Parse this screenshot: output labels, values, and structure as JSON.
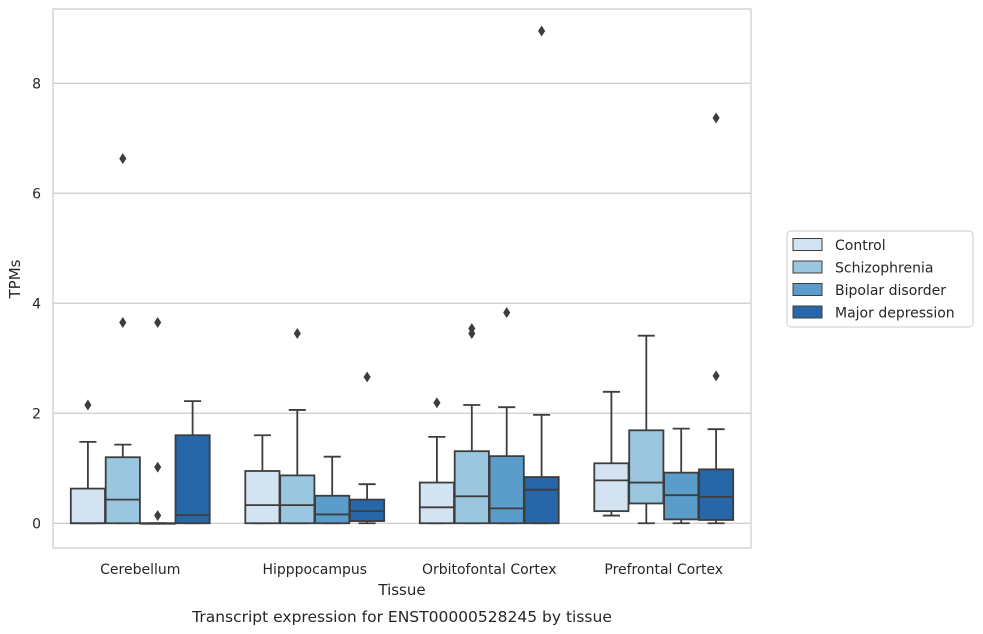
{
  "chart_data": {
    "type": "box",
    "title": "",
    "caption": "Transcript expression for ENST00000528245 by tissue",
    "xlabel": "Tissue",
    "ylabel": "TPMs",
    "ylim": [
      -0.45,
      9.35
    ],
    "yticks": [
      "0",
      "2",
      "4",
      "6",
      "8"
    ],
    "grid": "horizontal",
    "legend_position": "right",
    "categories": [
      "Cerebellum",
      "Hipppocampus",
      "Orbitofontal Cortex",
      "Prefrontal Cortex"
    ],
    "series": [
      {
        "name": "Control",
        "color": "#d3e3f2",
        "boxes": [
          {
            "whislo": 0.0,
            "q1": 0.0,
            "med": 0.0,
            "q3": 0.63,
            "whishi": 1.48,
            "fliers": [
              2.15
            ]
          },
          {
            "whislo": 0.0,
            "q1": 0.0,
            "med": 0.33,
            "q3": 0.95,
            "whishi": 1.6,
            "fliers": []
          },
          {
            "whislo": 0.0,
            "q1": 0.0,
            "med": 0.29,
            "q3": 0.74,
            "whishi": 1.57,
            "fliers": [
              2.19
            ]
          },
          {
            "whislo": 0.14,
            "q1": 0.22,
            "med": 0.78,
            "q3": 1.09,
            "whishi": 2.39,
            "fliers": []
          }
        ]
      },
      {
        "name": "Schizophrenia",
        "color": "#9ac6df",
        "boxes": [
          {
            "whislo": 0.0,
            "q1": 0.0,
            "med": 0.43,
            "q3": 1.2,
            "whishi": 1.43,
            "fliers": [
              3.65,
              6.63
            ]
          },
          {
            "whislo": 0.0,
            "q1": 0.0,
            "med": 0.33,
            "q3": 0.87,
            "whishi": 2.06,
            "fliers": [
              3.45
            ]
          },
          {
            "whislo": 0.0,
            "q1": 0.0,
            "med": 0.49,
            "q3": 1.31,
            "whishi": 2.15,
            "fliers": [
              3.45,
              3.54
            ]
          },
          {
            "whislo": 0.0,
            "q1": 0.36,
            "med": 0.74,
            "q3": 1.69,
            "whishi": 3.41,
            "fliers": []
          }
        ]
      },
      {
        "name": "Bipolar disorder",
        "color": "#5a9dcb",
        "boxes": [
          {
            "whislo": 0.0,
            "q1": 0.0,
            "med": 0.0,
            "q3": 0.0,
            "whishi": 0.0,
            "fliers": [
              0.14,
              1.02,
              3.65
            ]
          },
          {
            "whislo": 0.0,
            "q1": 0.0,
            "med": 0.16,
            "q3": 0.5,
            "whishi": 1.21,
            "fliers": []
          },
          {
            "whislo": 0.0,
            "q1": 0.0,
            "med": 0.27,
            "q3": 1.22,
            "whishi": 2.11,
            "fliers": [
              3.83
            ]
          },
          {
            "whislo": 0.0,
            "q1": 0.07,
            "med": 0.51,
            "q3": 0.92,
            "whishi": 1.72,
            "fliers": []
          }
        ]
      },
      {
        "name": "Major depression",
        "color": "#2767a9",
        "boxes": [
          {
            "whislo": 0.0,
            "q1": 0.0,
            "med": 0.15,
            "q3": 1.6,
            "whishi": 2.22,
            "fliers": []
          },
          {
            "whislo": 0.0,
            "q1": 0.04,
            "med": 0.22,
            "q3": 0.43,
            "whishi": 0.71,
            "fliers": [
              2.66
            ]
          },
          {
            "whislo": 0.0,
            "q1": 0.0,
            "med": 0.61,
            "q3": 0.84,
            "whishi": 1.97,
            "fliers": [
              8.95
            ]
          },
          {
            "whislo": 0.0,
            "q1": 0.06,
            "med": 0.48,
            "q3": 0.98,
            "whishi": 1.71,
            "fliers": [
              2.68,
              7.37
            ]
          }
        ]
      }
    ]
  }
}
